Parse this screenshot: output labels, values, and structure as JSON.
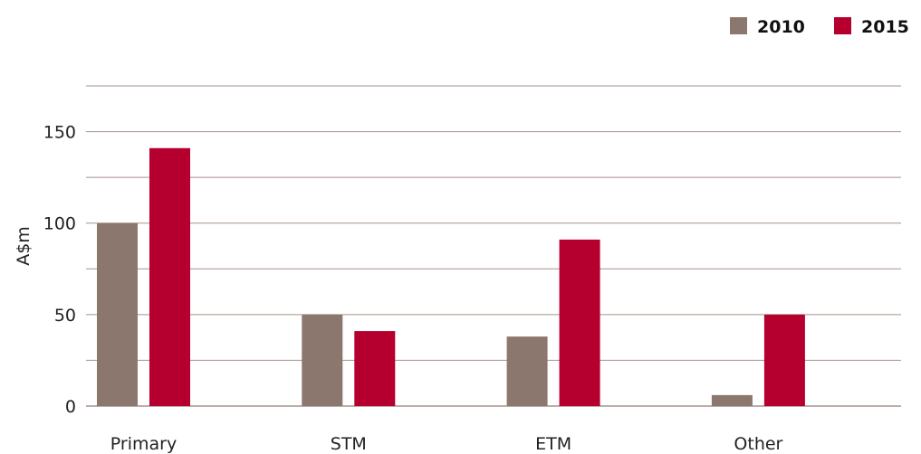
{
  "chart_data": {
    "type": "bar",
    "categories": [
      "Primary",
      "STM",
      "ETM",
      "Other"
    ],
    "series": [
      {
        "name": "2010",
        "color": "#8b776d",
        "values": [
          100,
          50,
          38,
          6
        ]
      },
      {
        "name": "2015",
        "color": "#b5002f",
        "values": [
          141,
          41,
          91,
          50
        ]
      }
    ],
    "ylabel": "A$m",
    "ylim": [
      0,
      175
    ],
    "yticks": [
      0,
      50,
      100,
      150
    ],
    "gridlines": [
      0,
      25,
      50,
      75,
      100,
      125,
      150,
      175
    ],
    "grid": true,
    "grid_color": "#a7928a",
    "legend_position": "top-right"
  }
}
